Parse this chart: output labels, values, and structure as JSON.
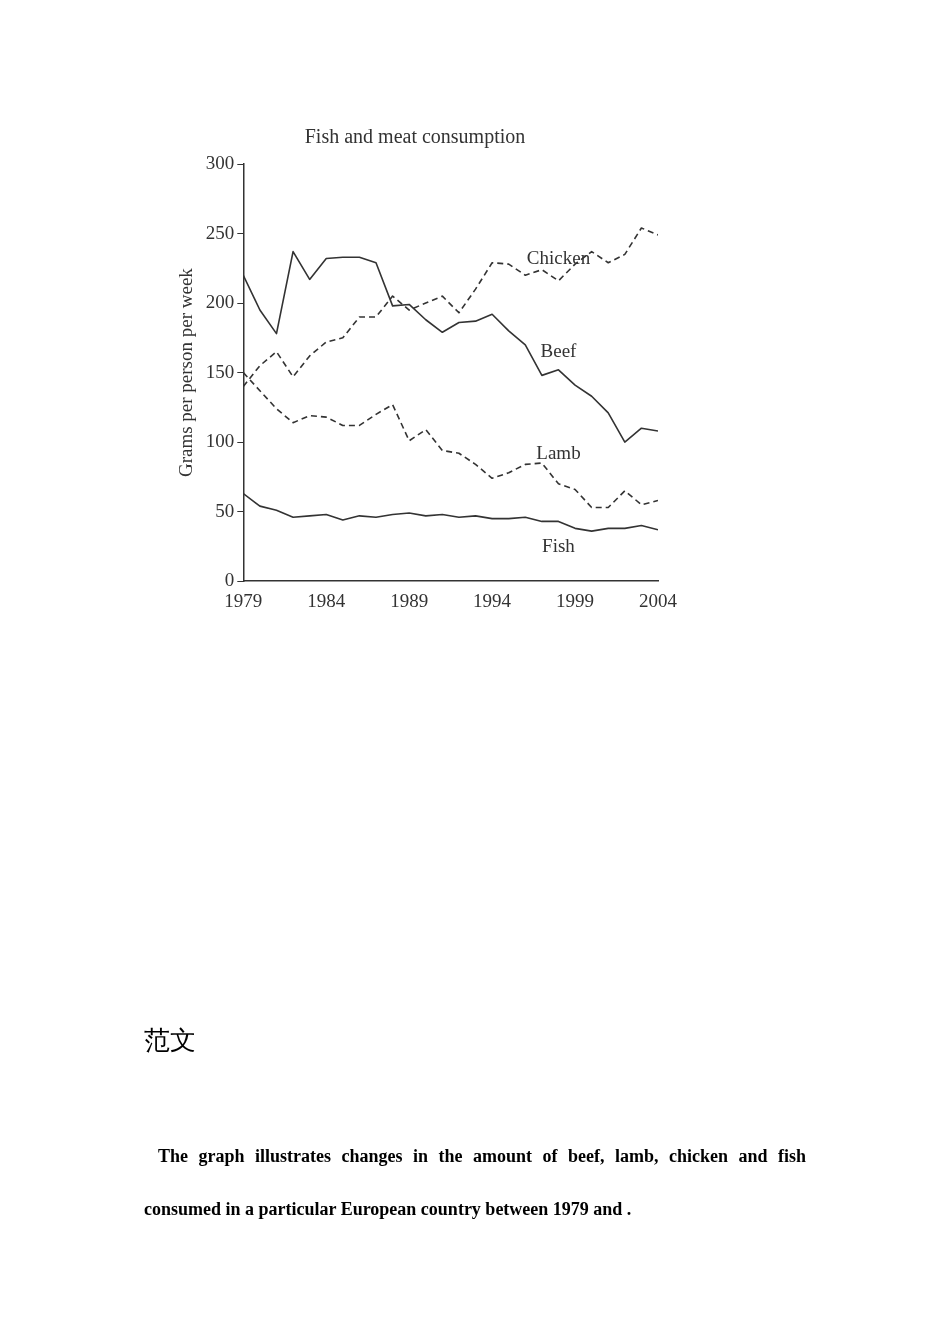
{
  "chart_data": {
    "type": "line",
    "title": "Fish and meat consumption",
    "ylabel": "Grams per person per week",
    "x": [
      1979,
      1980,
      1981,
      1982,
      1983,
      1984,
      1985,
      1986,
      1987,
      1988,
      1989,
      1990,
      1991,
      1992,
      1993,
      1994,
      1995,
      1996,
      1997,
      1998,
      1999,
      2000,
      2001,
      2002,
      2003,
      2004
    ],
    "series": [
      {
        "name": "Beef",
        "color": "#333333",
        "line_style": "solid",
        "values": [
          220,
          195,
          178,
          237,
          217,
          232,
          233,
          233,
          229,
          198,
          199,
          188,
          179,
          186,
          187,
          192,
          180,
          170,
          148,
          152,
          141,
          133,
          121,
          100,
          110,
          108
        ]
      },
      {
        "name": "Lamb",
        "color": "#333333",
        "line_style": "dashed",
        "values": [
          150,
          137,
          124,
          114,
          119,
          118,
          112,
          112,
          120,
          127,
          101,
          109,
          94,
          92,
          84,
          74,
          78,
          84,
          85,
          70,
          66,
          53,
          53,
          65,
          55,
          58
        ]
      },
      {
        "name": "Chicken",
        "color": "#333333",
        "line_style": "dashed",
        "values": [
          140,
          155,
          165,
          147,
          162,
          172,
          175,
          190,
          190,
          205,
          195,
          200,
          205,
          193,
          210,
          229,
          228,
          220,
          224,
          216,
          228,
          237,
          229,
          235,
          254,
          249
        ]
      },
      {
        "name": "Fish",
        "color": "#333333",
        "line_style": "solid",
        "values": [
          63,
          54,
          51,
          46,
          47,
          48,
          44,
          47,
          46,
          48,
          49,
          47,
          48,
          46,
          47,
          45,
          45,
          46,
          43,
          43,
          38,
          36,
          38,
          38,
          40,
          37
        ]
      }
    ],
    "xlim": [
      1979,
      2004
    ],
    "xticks": [
      1979,
      1984,
      1989,
      1994,
      1999,
      2004
    ],
    "ylim": [
      0,
      300
    ],
    "yticks": [
      0,
      50,
      100,
      150,
      200,
      250,
      300
    ],
    "grid": false,
    "legend": false,
    "marker": "none",
    "annotations": [
      "范文",
      "The graph illustrates changes in the amount of beef, lamb, chicken and fish consumed in a particular European country between 1979 and ."
    ]
  }
}
